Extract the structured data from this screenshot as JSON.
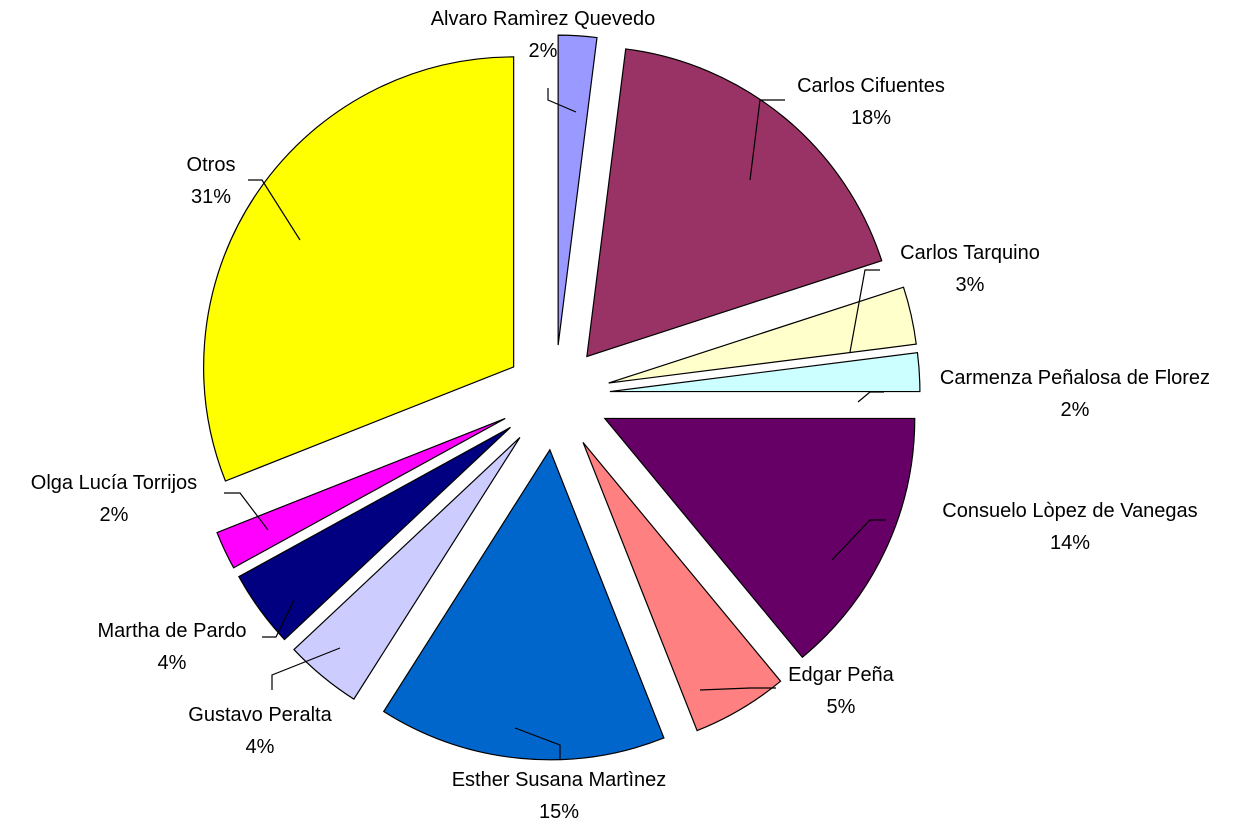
{
  "chart_data": {
    "type": "pie",
    "title": "",
    "exploded": true,
    "start_angle_deg": 0,
    "direction": "clockwise",
    "slices": [
      {
        "label": "Alvaro Ramìrez Quevedo",
        "value": 2,
        "value_label": "2%",
        "color": "#9999FF"
      },
      {
        "label": "Carlos Cifuentes",
        "value": 18,
        "value_label": "18%",
        "color": "#993366"
      },
      {
        "label": "Carlos Tarquino",
        "value": 3,
        "value_label": "3%",
        "color": "#FFFFCC"
      },
      {
        "label": "Carmenza Peñalosa de Florez",
        "value": 2,
        "value_label": "2%",
        "color": "#CCFFFF"
      },
      {
        "label": "Consuelo Lòpez de Vanegas",
        "value": 14,
        "value_label": "14%",
        "color": "#660066"
      },
      {
        "label": "Edgar Peña",
        "value": 5,
        "value_label": "5%",
        "color": "#FF8080"
      },
      {
        "label": "Esther Susana Martìnez",
        "value": 15,
        "value_label": "15%",
        "color": "#0066CC"
      },
      {
        "label": "Gustavo Peralta",
        "value": 4,
        "value_label": "4%",
        "color": "#CCCCFF"
      },
      {
        "label": "Martha de Pardo",
        "value": 4,
        "value_label": "4%",
        "color": "#000080"
      },
      {
        "label": "Olga Lucía Torrijos",
        "value": 2,
        "value_label": "2%",
        "color": "#FF00FF"
      },
      {
        "label": "Otros",
        "value": 31,
        "value_label": "31%",
        "color": "#FFFF00"
      }
    ]
  }
}
